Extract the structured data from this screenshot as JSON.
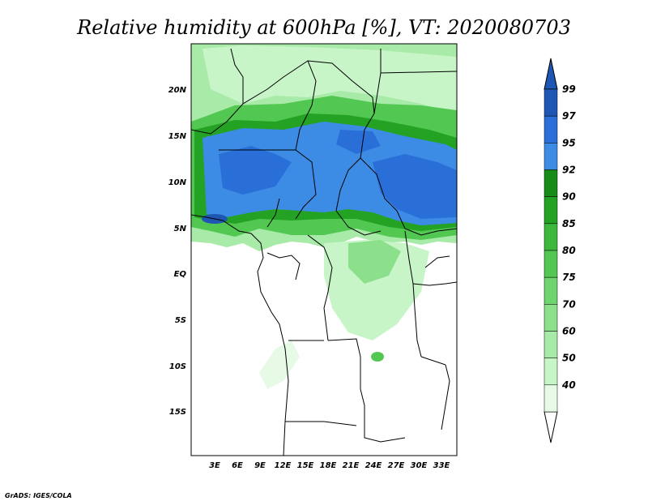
{
  "title": "Relative humidity at 600hPa [%], VT: 2020080703",
  "credit": "GrADS: IGES/COLA",
  "map": {
    "lat_labels": [
      "20N",
      "15N",
      "10N",
      "5N",
      "EQ",
      "5S",
      "10S",
      "15S"
    ],
    "lon_labels": [
      "3E",
      "6E",
      "9E",
      "12E",
      "15E",
      "18E",
      "21E",
      "24E",
      "27E",
      "30E",
      "33E"
    ],
    "colors": {
      "land_bg": "#ffffff",
      "border": "#000000",
      "rh40": "#e6fae6",
      "rh50": "#c8f5c8",
      "rh60": "#a8eaa8",
      "rh70": "#8ce08c",
      "rh75": "#6fd56f",
      "rh80": "#52c852",
      "rh85": "#3cb83c",
      "rh90": "#24a224",
      "rh92": "#188c18",
      "rh95": "#3c8ce6",
      "rh97": "#2a6fd8",
      "rh99": "#1e56b4"
    }
  },
  "colorbar": {
    "labels": [
      "99",
      "97",
      "95",
      "92",
      "90",
      "85",
      "80",
      "75",
      "70",
      "60",
      "50",
      "40"
    ],
    "colors": [
      "#1e56b4",
      "#2a6fd8",
      "#3c8ce6",
      "#188c18",
      "#24a224",
      "#3cb83c",
      "#52c852",
      "#6fd56f",
      "#8ce08c",
      "#a8eaa8",
      "#c8f5c8",
      "#e6fae6"
    ]
  }
}
